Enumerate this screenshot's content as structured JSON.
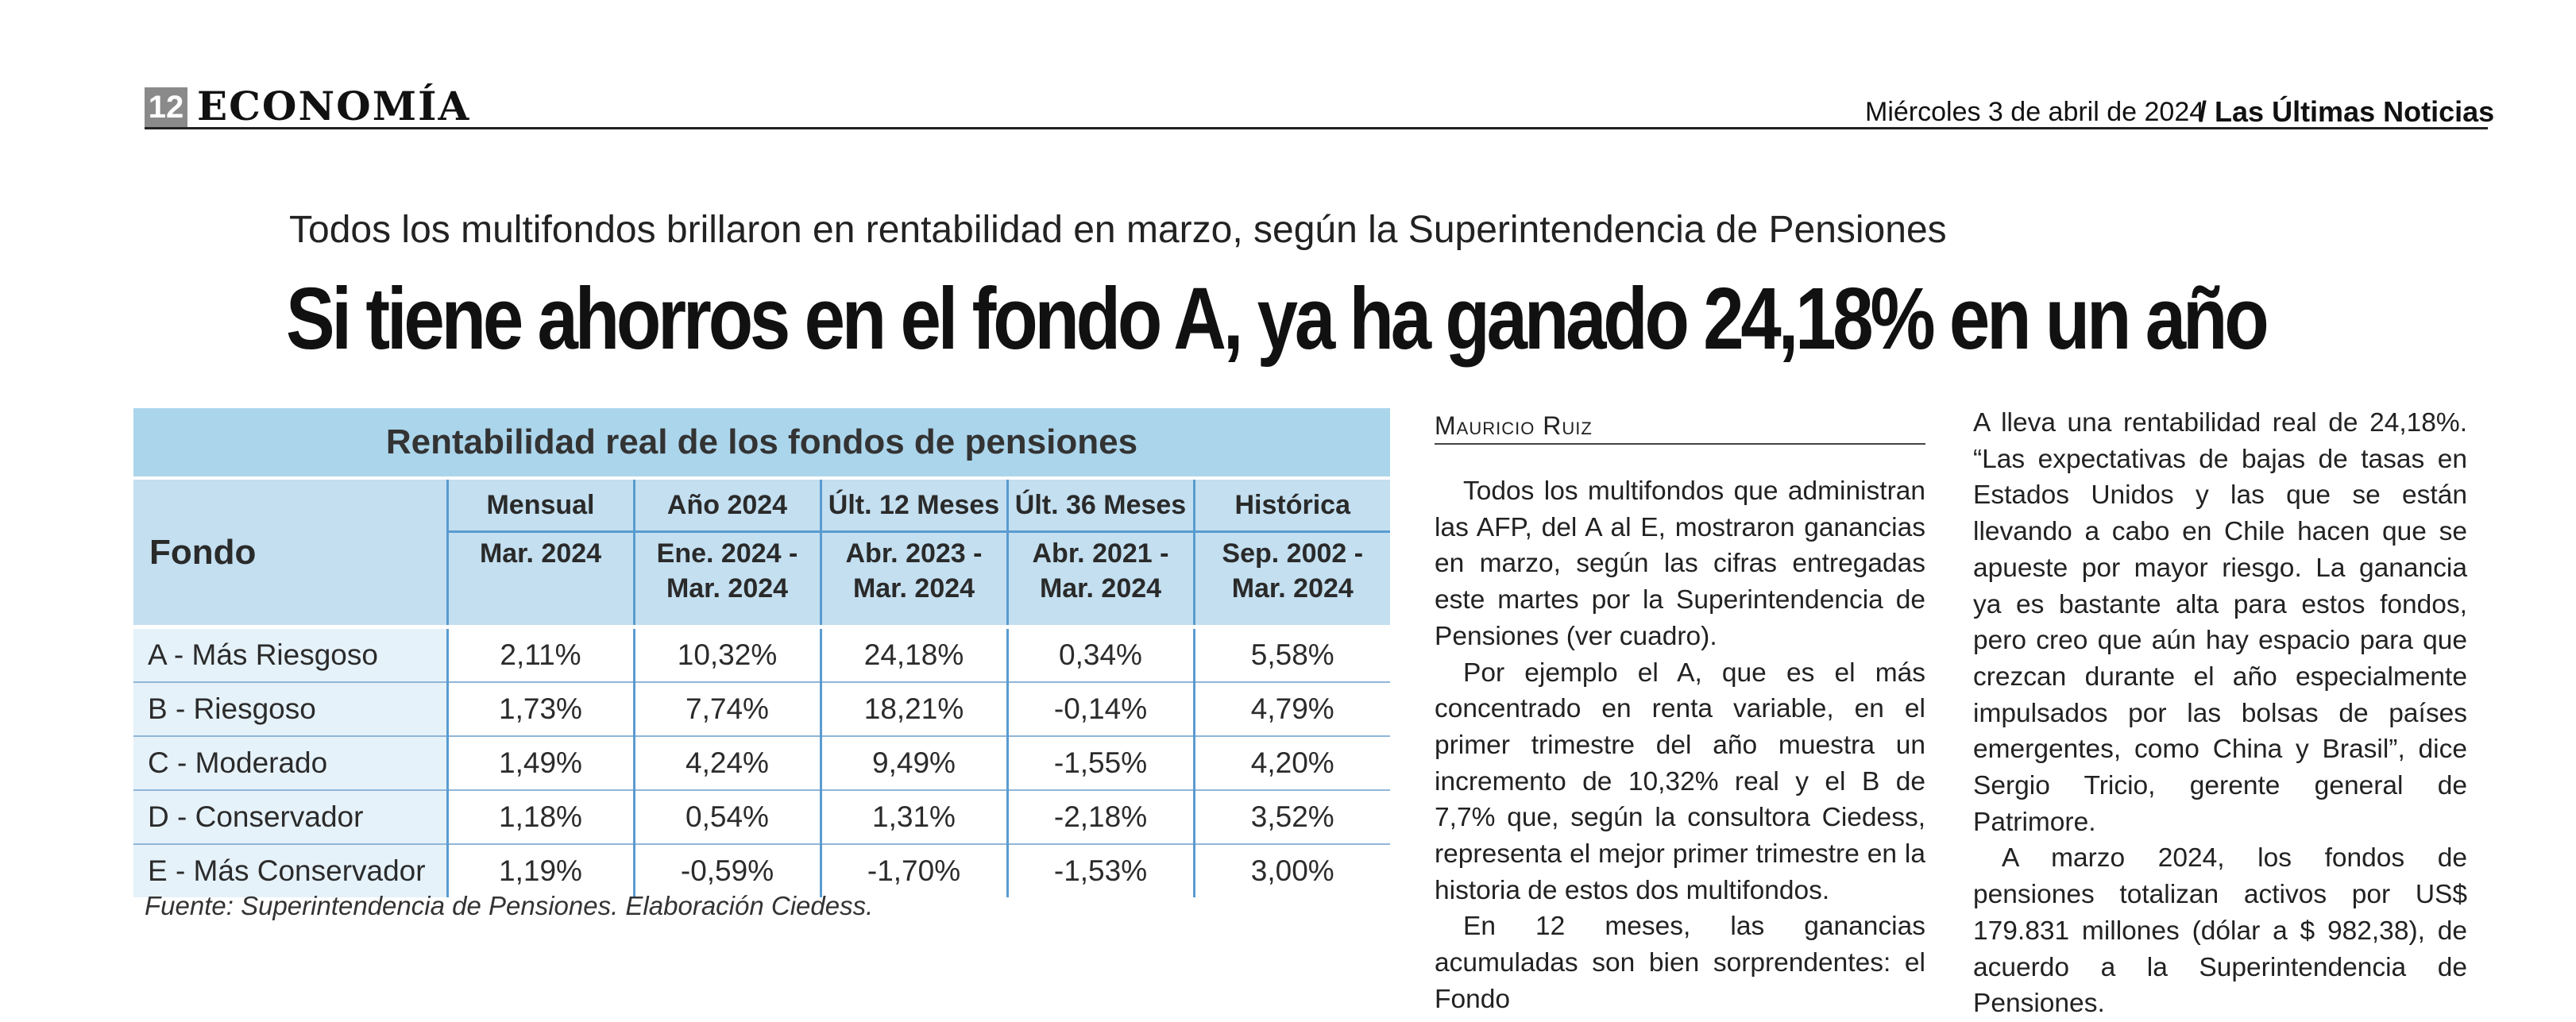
{
  "header": {
    "page_number": "12",
    "section": "ECONOMÍA",
    "date": "Miércoles 3 de abril de 2024",
    "separator": "/",
    "newspaper": "Las Últimas Noticias"
  },
  "article": {
    "kicker": "Todos los multifondos brillaron en rentabilidad en marzo, según la Superintendencia de Pensiones",
    "headline": "Si tiene ahorros en el fondo A, ya ha ganado 24,18% en un año",
    "byline": "Mauricio Ruiz",
    "column1": [
      "Todos los multifondos que administran las AFP, del A al E, mostraron ganancias en marzo, según las cifras entregadas este martes por la Superintendencia de Pensiones (ver cuadro).",
      "Por ejemplo el A, que es el más concentrado en renta variable, en el primer trimestre del año muestra un incremento de 10,32% real y el B de 7,7% que, según la consultora Ciedess, representa el mejor primer trimestre en la historia de estos dos multifondos.",
      "En 12 meses, las ganancias acumuladas son bien sorprendentes: el Fondo"
    ],
    "column2": [
      "A lleva una rentabilidad real de 24,18%. “Las expectativas de bajas de tasas en Estados Unidos y las que se están llevando a cabo en Chile hacen que se apueste por mayor riesgo. La ganancia ya es bastante alta para estos fondos, pero creo que aún hay espacio para que crezcan durante el año especialmente impulsados por las bolsas de países emergentes, como China y Brasil”, dice Sergio Tricio, gerente general de Patrimore.",
      "A marzo 2024, los fondos de pensiones totalizan activos por  US$ 179.831 millones (dólar a $ 982,38), de acuerdo a la Superintendencia de Pensiones."
    ]
  },
  "table": {
    "title": "Rentabilidad real de los fondos de pensiones",
    "fondo_header": "Fondo",
    "columns": [
      {
        "name": "Mensual",
        "period": "Mar. 2024"
      },
      {
        "name": "Año 2024",
        "period": "Ene. 2024 - Mar. 2024"
      },
      {
        "name": "Últ. 12 Meses",
        "period": "Abr. 2023 - Mar. 2024"
      },
      {
        "name": "Últ. 36 Meses",
        "period": "Abr. 2021 - Mar. 2024"
      },
      {
        "name": "Histórica",
        "period": "Sep. 2002 - Mar. 2024"
      }
    ],
    "rows": [
      {
        "fondo": "A - Más Riesgoso",
        "values": [
          "2,11%",
          "10,32%",
          "24,18%",
          "0,34%",
          "5,58%"
        ]
      },
      {
        "fondo": "B - Riesgoso",
        "values": [
          "1,73%",
          "7,74%",
          "18,21%",
          "-0,14%",
          "4,79%"
        ]
      },
      {
        "fondo": "C - Moderado",
        "values": [
          "1,49%",
          "4,24%",
          "9,49%",
          "-1,55%",
          "4,20%"
        ]
      },
      {
        "fondo": "D - Conservador",
        "values": [
          "1,18%",
          "0,54%",
          "1,31%",
          "-2,18%",
          "3,52%"
        ]
      },
      {
        "fondo": "E - Más Conservador",
        "values": [
          "1,19%",
          "-0,59%",
          "-1,70%",
          "-1,53%",
          "3,00%"
        ]
      }
    ],
    "source": "Fuente: Superintendencia de Pensiones. Elaboración Ciedess."
  },
  "colors": {
    "caption_bg": "#abd5eb",
    "header_bg": "#c3dff0",
    "row_label_bg": "#e6f2fa",
    "grid_line": "#5a9bd0"
  }
}
